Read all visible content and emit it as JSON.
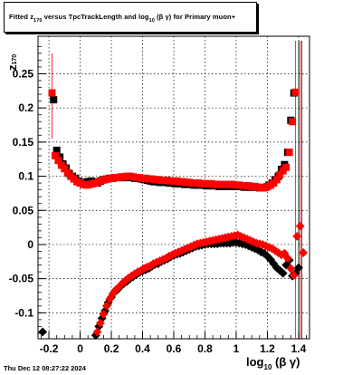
{
  "chart_data": {
    "type": "scatter",
    "title_parts": {
      "pre": "Fitted  z",
      "sub1": "170",
      "mid": "  versus TpcTrackLength and log",
      "sub2": "10",
      "post": " (β  γ) for Primary muon+"
    },
    "ylabel_parts": {
      "main": "z",
      "sub": "170"
    },
    "xlabel_parts": {
      "pre": "log",
      "sub": "10",
      "post": " (β γ)"
    },
    "x_ticks": [
      "-0.2",
      "0",
      "0.2",
      "0.4",
      "0.6",
      "0.8",
      "1",
      "1.2",
      "1.4"
    ],
    "y_ticks": [
      "-0.1",
      "-0.05",
      "0",
      "0.05",
      "0.1",
      "0.15",
      "0.2",
      "0.25"
    ],
    "xlim": [
      -0.27,
      1.47
    ],
    "ylim": [
      -0.138,
      0.305
    ],
    "grid": true,
    "colors": {
      "black_series": "#000000",
      "red_series": "#ff0000"
    },
    "series": [
      {
        "color": "black",
        "points": [
          [
            -0.17,
            0.212
          ],
          [
            -0.15,
            0.138
          ],
          [
            -0.13,
            0.128
          ],
          [
            -0.11,
            0.118
          ],
          [
            -0.09,
            0.112
          ],
          [
            -0.07,
            0.104
          ],
          [
            -0.05,
            0.1
          ],
          [
            -0.03,
            0.097
          ],
          [
            -0.01,
            0.093
          ],
          [
            0.01,
            0.091
          ],
          [
            0.03,
            0.09
          ],
          [
            0.05,
            0.092
          ],
          [
            0.07,
            0.093
          ],
          [
            0.09,
            0.092
          ],
          [
            0.11,
            0.09
          ],
          [
            0.13,
            0.093
          ],
          [
            0.15,
            0.095
          ],
          [
            0.17,
            0.096
          ],
          [
            0.19,
            0.097
          ],
          [
            0.21,
            0.097
          ],
          [
            0.23,
            0.098
          ],
          [
            0.25,
            0.098
          ],
          [
            0.27,
            0.098
          ],
          [
            0.29,
            0.098
          ],
          [
            0.31,
            0.098
          ],
          [
            0.33,
            0.098
          ],
          [
            0.35,
            0.097
          ],
          [
            0.37,
            0.097
          ],
          [
            0.39,
            0.096
          ],
          [
            0.41,
            0.095
          ],
          [
            0.43,
            0.094
          ],
          [
            0.45,
            0.093
          ],
          [
            0.47,
            0.092
          ],
          [
            0.49,
            0.092
          ],
          [
            0.51,
            0.091
          ],
          [
            0.53,
            0.091
          ],
          [
            0.55,
            0.091
          ],
          [
            0.57,
            0.09
          ],
          [
            0.59,
            0.09
          ],
          [
            0.61,
            0.089
          ],
          [
            0.63,
            0.089
          ],
          [
            0.65,
            0.089
          ],
          [
            0.67,
            0.088
          ],
          [
            0.69,
            0.088
          ],
          [
            0.71,
            0.088
          ],
          [
            0.73,
            0.087
          ],
          [
            0.75,
            0.087
          ],
          [
            0.77,
            0.087
          ],
          [
            0.79,
            0.087
          ],
          [
            0.81,
            0.086
          ],
          [
            0.83,
            0.086
          ],
          [
            0.85,
            0.086
          ],
          [
            0.87,
            0.086
          ],
          [
            0.89,
            0.085
          ],
          [
            0.91,
            0.085
          ],
          [
            0.93,
            0.085
          ],
          [
            0.95,
            0.085
          ],
          [
            0.97,
            0.085
          ],
          [
            0.99,
            0.085
          ],
          [
            1.01,
            0.085
          ],
          [
            1.03,
            0.085
          ],
          [
            1.05,
            0.084
          ],
          [
            1.07,
            0.084
          ],
          [
            1.09,
            0.084
          ],
          [
            1.11,
            0.084
          ],
          [
            1.13,
            0.084
          ],
          [
            1.15,
            0.083
          ],
          [
            1.17,
            0.083
          ],
          [
            1.19,
            0.084
          ],
          [
            1.21,
            0.087
          ],
          [
            1.23,
            0.09
          ],
          [
            1.25,
            0.095
          ],
          [
            1.27,
            0.1
          ],
          [
            1.29,
            0.11
          ],
          [
            1.31,
            0.117
          ],
          [
            1.33,
            0.135
          ],
          [
            1.35,
            0.182
          ],
          [
            1.37,
            0.222
          ],
          [
            -0.24,
            -0.128
          ],
          [
            0.1,
            -0.133
          ],
          [
            0.12,
            -0.12
          ],
          [
            0.14,
            -0.108
          ],
          [
            0.16,
            -0.097
          ],
          [
            0.18,
            -0.085
          ],
          [
            0.2,
            -0.077
          ],
          [
            0.22,
            -0.07
          ],
          [
            0.24,
            -0.066
          ],
          [
            0.26,
            -0.061
          ],
          [
            0.28,
            -0.057
          ],
          [
            0.3,
            -0.054
          ],
          [
            0.32,
            -0.05
          ],
          [
            0.34,
            -0.047
          ],
          [
            0.36,
            -0.044
          ],
          [
            0.38,
            -0.041
          ],
          [
            0.4,
            -0.039
          ],
          [
            0.42,
            -0.037
          ],
          [
            0.44,
            -0.035
          ],
          [
            0.46,
            -0.032
          ],
          [
            0.48,
            -0.029
          ],
          [
            0.5,
            -0.028
          ],
          [
            0.52,
            -0.025
          ],
          [
            0.54,
            -0.023
          ],
          [
            0.56,
            -0.021
          ],
          [
            0.58,
            -0.018
          ],
          [
            0.6,
            -0.016
          ],
          [
            0.62,
            -0.014
          ],
          [
            0.64,
            -0.013
          ],
          [
            0.66,
            -0.011
          ],
          [
            0.68,
            -0.009
          ],
          [
            0.7,
            -0.007
          ],
          [
            0.72,
            -0.005
          ],
          [
            0.74,
            -0.003
          ],
          [
            0.76,
            -0.002
          ],
          [
            0.78,
            -0.001
          ],
          [
            0.8,
            0.0
          ],
          [
            0.82,
            0.001
          ],
          [
            0.84,
            0.001
          ],
          [
            0.86,
            0.001
          ],
          [
            0.88,
            0.001
          ],
          [
            0.9,
            0.002
          ],
          [
            0.92,
            0.002
          ],
          [
            0.94,
            0.002
          ],
          [
            0.96,
            0.002
          ],
          [
            0.98,
            0.003
          ],
          [
            1.0,
            0.003
          ],
          [
            1.02,
            0.002
          ],
          [
            1.04,
            0.001
          ],
          [
            1.06,
            0.0
          ],
          [
            1.08,
            -0.002
          ],
          [
            1.1,
            -0.004
          ],
          [
            1.12,
            -0.006
          ],
          [
            1.14,
            -0.008
          ],
          [
            1.16,
            -0.011
          ],
          [
            1.18,
            -0.013
          ],
          [
            1.2,
            -0.017
          ],
          [
            1.22,
            -0.022
          ],
          [
            1.24,
            -0.028
          ],
          [
            1.26,
            -0.034
          ],
          [
            1.28,
            -0.038
          ],
          [
            1.3,
            -0.042
          ],
          [
            1.32,
            -0.03
          ],
          [
            1.34,
            -0.023
          ],
          [
            1.36,
            -0.046
          ],
          [
            1.38,
            -0.042
          ],
          [
            1.4,
            -0.034
          ]
        ]
      },
      {
        "color": "red",
        "points": [
          [
            -0.18,
            0.222
          ],
          [
            -0.16,
            0.13
          ],
          [
            -0.14,
            0.123
          ],
          [
            -0.12,
            0.116
          ],
          [
            -0.1,
            0.111
          ],
          [
            -0.08,
            0.105
          ],
          [
            -0.06,
            0.1
          ],
          [
            -0.04,
            0.096
          ],
          [
            -0.02,
            0.092
          ],
          [
            0.0,
            0.09
          ],
          [
            0.02,
            0.088
          ],
          [
            0.04,
            0.087
          ],
          [
            0.06,
            0.088
          ],
          [
            0.08,
            0.089
          ],
          [
            0.1,
            0.09
          ],
          [
            0.12,
            0.092
          ],
          [
            0.14,
            0.094
          ],
          [
            0.16,
            0.095
          ],
          [
            0.18,
            0.096
          ],
          [
            0.2,
            0.097
          ],
          [
            0.22,
            0.098
          ],
          [
            0.24,
            0.098
          ],
          [
            0.26,
            0.099
          ],
          [
            0.28,
            0.099
          ],
          [
            0.3,
            0.1
          ],
          [
            0.32,
            0.1
          ],
          [
            0.34,
            0.099
          ],
          [
            0.36,
            0.098
          ],
          [
            0.38,
            0.098
          ],
          [
            0.4,
            0.097
          ],
          [
            0.42,
            0.097
          ],
          [
            0.44,
            0.096
          ],
          [
            0.46,
            0.096
          ],
          [
            0.48,
            0.095
          ],
          [
            0.5,
            0.095
          ],
          [
            0.52,
            0.094
          ],
          [
            0.54,
            0.094
          ],
          [
            0.56,
            0.094
          ],
          [
            0.58,
            0.093
          ],
          [
            0.6,
            0.093
          ],
          [
            0.62,
            0.093
          ],
          [
            0.64,
            0.092
          ],
          [
            0.66,
            0.092
          ],
          [
            0.68,
            0.091
          ],
          [
            0.7,
            0.091
          ],
          [
            0.72,
            0.09
          ],
          [
            0.74,
            0.09
          ],
          [
            0.76,
            0.09
          ],
          [
            0.78,
            0.089
          ],
          [
            0.8,
            0.089
          ],
          [
            0.82,
            0.089
          ],
          [
            0.84,
            0.089
          ],
          [
            0.86,
            0.088
          ],
          [
            0.88,
            0.088
          ],
          [
            0.9,
            0.088
          ],
          [
            0.92,
            0.088
          ],
          [
            0.94,
            0.088
          ],
          [
            0.96,
            0.088
          ],
          [
            0.98,
            0.088
          ],
          [
            1.0,
            0.087
          ],
          [
            1.02,
            0.087
          ],
          [
            1.04,
            0.086
          ],
          [
            1.06,
            0.086
          ],
          [
            1.08,
            0.086
          ],
          [
            1.1,
            0.085
          ],
          [
            1.12,
            0.085
          ],
          [
            1.14,
            0.084
          ],
          [
            1.16,
            0.083
          ],
          [
            1.18,
            0.083
          ],
          [
            1.2,
            0.085
          ],
          [
            1.22,
            0.087
          ],
          [
            1.24,
            0.09
          ],
          [
            1.26,
            0.095
          ],
          [
            1.28,
            0.102
          ],
          [
            1.3,
            0.108
          ],
          [
            1.32,
            0.113
          ],
          [
            1.34,
            0.135
          ],
          [
            1.36,
            0.18
          ],
          [
            1.38,
            0.223
          ],
          [
            0.11,
            -0.128
          ],
          [
            0.13,
            -0.115
          ],
          [
            0.15,
            -0.102
          ],
          [
            0.17,
            -0.09
          ],
          [
            0.19,
            -0.08
          ],
          [
            0.21,
            -0.072
          ],
          [
            0.23,
            -0.066
          ],
          [
            0.25,
            -0.062
          ],
          [
            0.27,
            -0.057
          ],
          [
            0.29,
            -0.053
          ],
          [
            0.31,
            -0.049
          ],
          [
            0.33,
            -0.046
          ],
          [
            0.35,
            -0.043
          ],
          [
            0.37,
            -0.04
          ],
          [
            0.39,
            -0.038
          ],
          [
            0.41,
            -0.035
          ],
          [
            0.43,
            -0.033
          ],
          [
            0.45,
            -0.031
          ],
          [
            0.47,
            -0.028
          ],
          [
            0.49,
            -0.026
          ],
          [
            0.51,
            -0.024
          ],
          [
            0.53,
            -0.022
          ],
          [
            0.55,
            -0.02
          ],
          [
            0.57,
            -0.017
          ],
          [
            0.59,
            -0.015
          ],
          [
            0.61,
            -0.013
          ],
          [
            0.63,
            -0.011
          ],
          [
            0.65,
            -0.009
          ],
          [
            0.67,
            -0.007
          ],
          [
            0.69,
            -0.005
          ],
          [
            0.71,
            -0.003
          ],
          [
            0.73,
            -0.001
          ],
          [
            0.75,
            0.001
          ],
          [
            0.77,
            0.002
          ],
          [
            0.79,
            0.003
          ],
          [
            0.81,
            0.004
          ],
          [
            0.83,
            0.005
          ],
          [
            0.85,
            0.006
          ],
          [
            0.87,
            0.007
          ],
          [
            0.89,
            0.008
          ],
          [
            0.91,
            0.009
          ],
          [
            0.93,
            0.01
          ],
          [
            0.95,
            0.011
          ],
          [
            0.97,
            0.012
          ],
          [
            0.99,
            0.013
          ],
          [
            1.01,
            0.014
          ],
          [
            1.03,
            0.012
          ],
          [
            1.05,
            0.01
          ],
          [
            1.07,
            0.008
          ],
          [
            1.09,
            0.006
          ],
          [
            1.11,
            0.004
          ],
          [
            1.13,
            0.002
          ],
          [
            1.15,
            0.001
          ],
          [
            1.17,
            0.0
          ],
          [
            1.19,
            -0.002
          ],
          [
            1.21,
            -0.004
          ],
          [
            1.23,
            -0.006
          ],
          [
            1.25,
            -0.009
          ],
          [
            1.27,
            -0.012
          ],
          [
            1.29,
            -0.015
          ],
          [
            1.31,
            -0.013
          ],
          [
            1.33,
            -0.02
          ],
          [
            1.35,
            -0.035
          ],
          [
            1.37,
            -0.045
          ],
          [
            1.39,
            0.012
          ],
          [
            1.41,
            0.027
          ],
          [
            1.43,
            -0.012
          ]
        ]
      }
    ]
  },
  "footer": {
    "timestamp": "Thu Dec 12 08:27:22 2024"
  }
}
